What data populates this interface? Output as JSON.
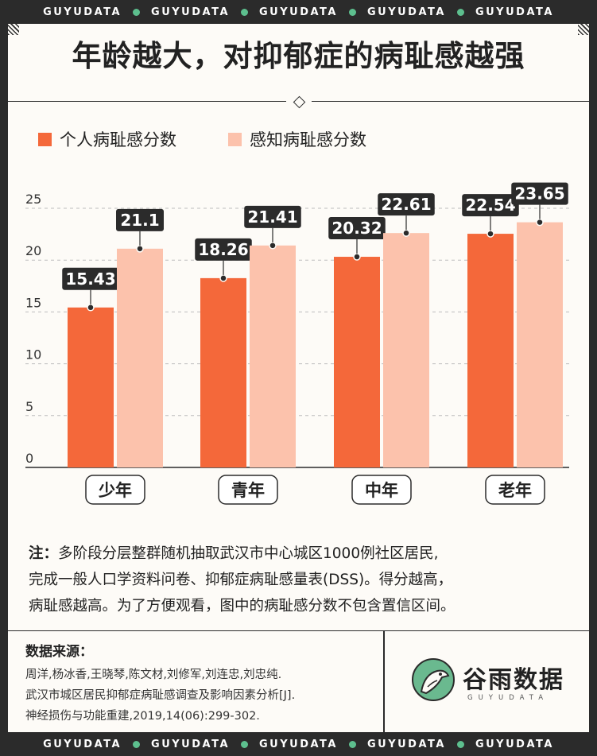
{
  "strip": [
    "GUYUDATA",
    "GUYUDATA",
    "GUYUDATA",
    "GUYUDATA",
    "GUYUDATA"
  ],
  "title": "年龄越大，对抑郁症的病耻感越强",
  "colors": {
    "personal": "#f4683a",
    "perceived": "#fcc2ac",
    "label_bg": "#2b2b2b",
    "accent": "#6ab98f"
  },
  "chart_data": {
    "type": "bar",
    "categories": [
      "少年",
      "青年",
      "中年",
      "老年"
    ],
    "series": [
      {
        "name": "个人病耻感分数",
        "values": [
          15.43,
          18.26,
          20.32,
          22.54
        ],
        "labels": [
          "15.43",
          "18.26",
          "20.32",
          "22.54"
        ]
      },
      {
        "name": "感知病耻感分数",
        "values": [
          21.1,
          21.41,
          22.61,
          23.65
        ],
        "labels": [
          "21.1",
          "21.41",
          "22.61",
          "23.65"
        ]
      }
    ],
    "yticks": [
      "0",
      "5",
      "10",
      "15",
      "20",
      "25"
    ],
    "ylim": [
      0,
      25
    ],
    "grid": true,
    "legend": "top-left"
  },
  "note": {
    "label": "注：",
    "lines": [
      "多阶段分层整群随机抽取武汉市中心城区1000例社区居民,",
      "完成一般人口学资料问卷、抑郁症病耻感量表(DSS)。得分越高，",
      "病耻感越高。为了方便观看，图中的病耻感分数不包含置信区间。"
    ]
  },
  "source": {
    "title": "数据来源：",
    "lines": [
      "周洋,杨冰香,王晓琴,陈文材,刘修军,刘连忠,刘忠纯.",
      "武汉市城区居民抑郁症病耻感调查及影响因素分析[J].",
      "神经损伤与功能重建,2019,14(06):299-302."
    ]
  },
  "logo": {
    "name": "谷雨数据",
    "sub": "GUYUDATA",
    "icon": "bird-icon"
  }
}
